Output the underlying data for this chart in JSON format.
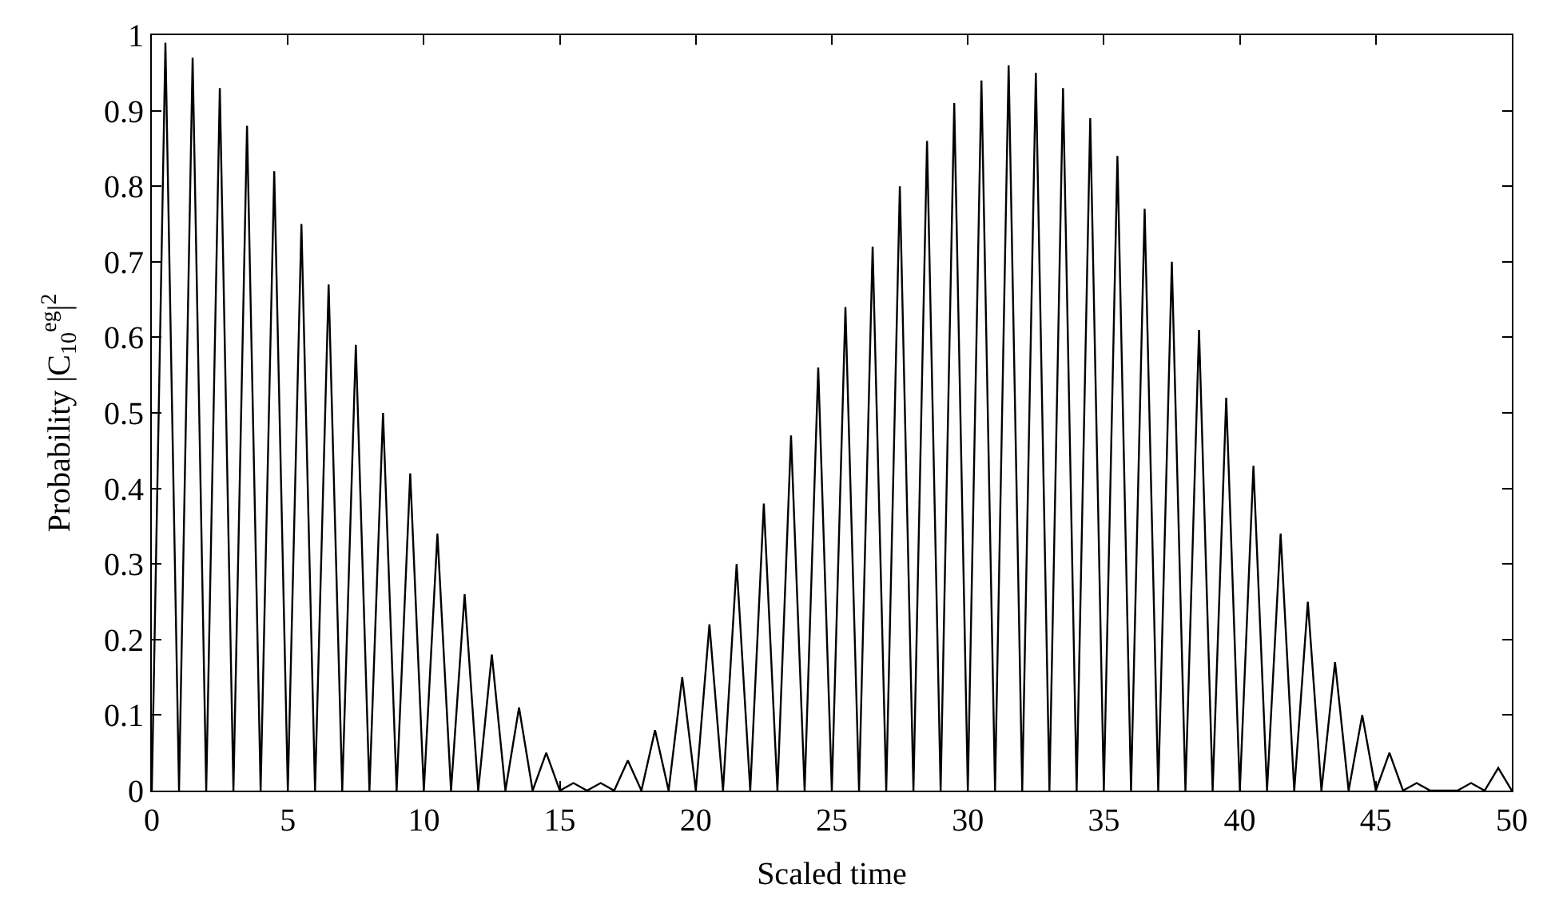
{
  "chart_data": {
    "type": "line",
    "xlabel": "Scaled time",
    "ylabel": "Probability |C$_{10}$$^{eg}$|$^{2}$",
    "x": [
      0,
      0.5,
      1,
      1.5,
      2,
      2.5,
      3,
      3.5,
      4,
      4.5,
      5,
      5.5,
      6,
      6.5,
      7,
      7.5,
      8,
      8.5,
      9,
      9.5,
      10,
      10.5,
      11,
      11.5,
      12,
      12.5,
      13,
      13.5,
      14,
      14.5,
      15,
      15.5,
      16,
      16.5,
      17,
      17.5,
      18,
      18.5,
      19,
      19.5,
      20,
      20.5,
      21,
      21.5,
      22,
      22.5,
      23,
      23.5,
      24,
      24.5,
      25,
      25.5,
      26,
      26.5,
      27,
      27.5,
      28,
      28.5,
      29,
      29.5,
      30,
      30.5,
      31,
      31.5,
      32,
      32.5,
      33,
      33.5,
      34,
      34.5,
      35,
      35.5,
      36,
      36.5,
      37,
      37.5,
      38,
      38.5,
      39,
      39.5,
      40,
      40.5,
      41,
      41.5,
      42,
      42.5,
      43,
      43.5,
      44,
      44.5,
      45,
      45.5,
      46,
      46.5,
      47,
      47.5,
      48,
      48.5,
      49,
      49.5,
      50
    ],
    "series": [
      {
        "color": "#000000",
        "values": [
          0,
          0.99,
          0,
          0.97,
          0,
          0.93,
          0,
          0.88,
          0,
          0.82,
          0,
          0.75,
          0,
          0.67,
          0,
          0.59,
          0,
          0.5,
          0,
          0.42,
          0,
          0.34,
          0,
          0.26,
          0,
          0.18,
          0,
          0.11,
          0,
          0.05,
          0,
          0.01,
          0,
          0.01,
          0,
          0.04,
          0,
          0.08,
          0,
          0.15,
          0,
          0.22,
          0,
          0.3,
          0,
          0.38,
          0,
          0.47,
          0,
          0.56,
          0,
          0.64,
          0,
          0.72,
          0,
          0.8,
          0,
          0.86,
          0,
          0.91,
          0,
          0.94,
          0,
          0.96,
          0,
          0.95,
          0,
          0.93,
          0,
          0.89,
          0,
          0.84,
          0,
          0.77,
          0,
          0.7,
          0,
          0.61,
          0,
          0.52,
          0,
          0.43,
          0,
          0.34,
          0,
          0.25,
          0,
          0.17,
          0,
          0.1,
          0,
          0.05,
          0,
          0.01,
          0,
          0,
          0,
          0.01,
          0,
          0.03,
          0
        ]
      }
    ],
    "xlim": [
      0,
      50
    ],
    "xticks": [
      0,
      5,
      10,
      15,
      20,
      25,
      30,
      35,
      40,
      45,
      50
    ],
    "ylim": [
      0,
      1
    ],
    "yticks": [
      0,
      0.1,
      0.2,
      0.3,
      0.4,
      0.5,
      0.6,
      0.7,
      0.8,
      0.9,
      1
    ],
    "marker": "none",
    "line_style": "solid"
  }
}
